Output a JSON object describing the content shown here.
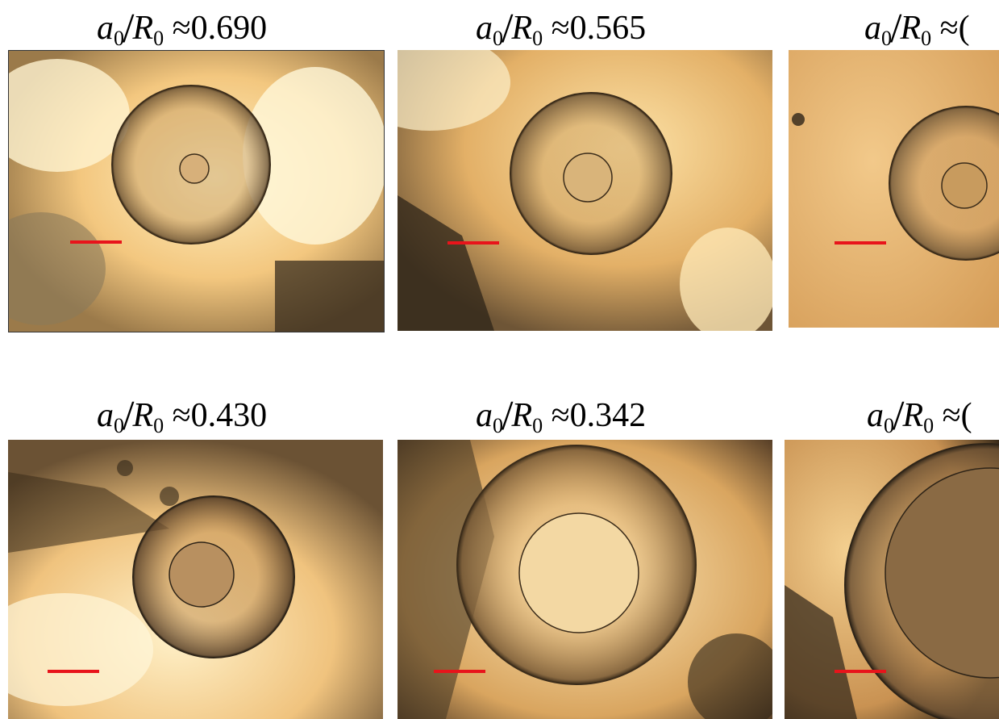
{
  "panels": [
    {
      "label": {
        "a": "a",
        "a_sub": "0",
        "R": "R",
        "R_sub": "0",
        "approx": "≈",
        "value": "0.690"
      },
      "scalebar_color": "#e8141b"
    },
    {
      "label": {
        "a": "a",
        "a_sub": "0",
        "R": "R",
        "R_sub": "0",
        "approx": "≈",
        "value": "0.565"
      },
      "scalebar_color": "#e8141b"
    },
    {
      "label": {
        "a": "a",
        "a_sub": "0",
        "R": "R",
        "R_sub": "0",
        "approx": "≈",
        "value": "("
      },
      "scalebar_color": "#e8141b"
    },
    {
      "label": {
        "a": "a",
        "a_sub": "0",
        "R": "R",
        "R_sub": "0",
        "approx": "≈",
        "value": "0.430"
      },
      "scalebar_color": "#e8141b"
    },
    {
      "label": {
        "a": "a",
        "a_sub": "0",
        "R": "R",
        "R_sub": "0",
        "approx": "≈",
        "value": "0.342"
      },
      "scalebar_color": "#e8141b"
    },
    {
      "label": {
        "a": "a",
        "a_sub": "0",
        "R": "R",
        "R_sub": "0",
        "approx": "≈",
        "value": "("
      },
      "scalebar_color": "#e8141b"
    }
  ]
}
